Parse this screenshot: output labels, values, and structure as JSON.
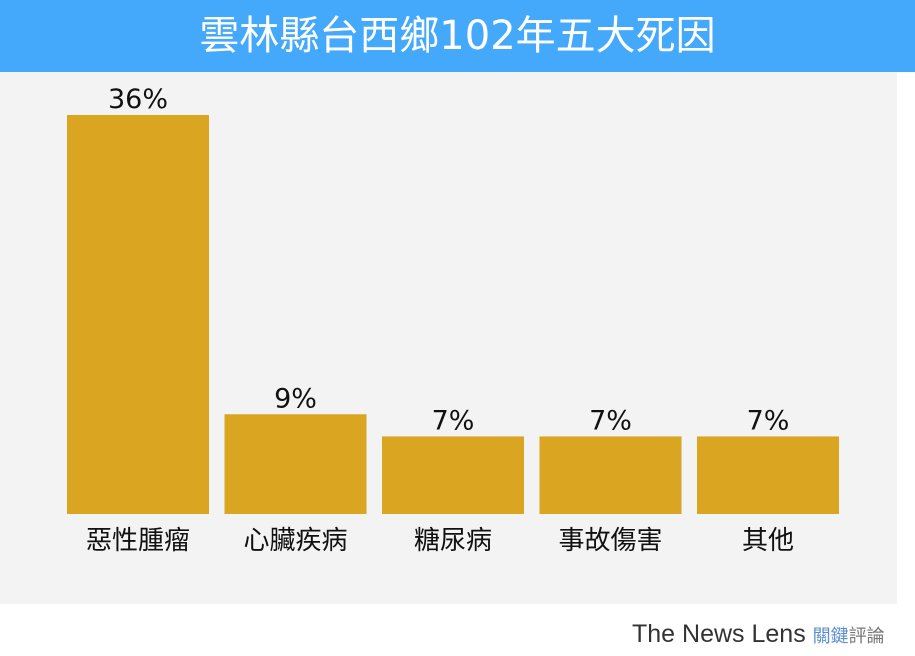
{
  "chart_data": {
    "type": "bar",
    "title": "雲林縣台西鄉102年五大死因",
    "categories": [
      "惡性腫瘤",
      "心臟疾病",
      "糖尿病",
      "事故傷害",
      "其他"
    ],
    "values": [
      36,
      9,
      7,
      7,
      7
    ],
    "value_labels": [
      "36%",
      "9%",
      "7%",
      "7%",
      "7%"
    ],
    "xlabel": "",
    "ylabel": "",
    "ylim": [
      0,
      40
    ],
    "grid": false,
    "bar_color": "#daa520"
  },
  "colors": {
    "title_bg": "#44a9fb",
    "plot_bg": "#f3f3f3"
  },
  "logo": {
    "en": "The News Lens",
    "zh_a": "關鍵",
    "zh_b": "評論"
  }
}
